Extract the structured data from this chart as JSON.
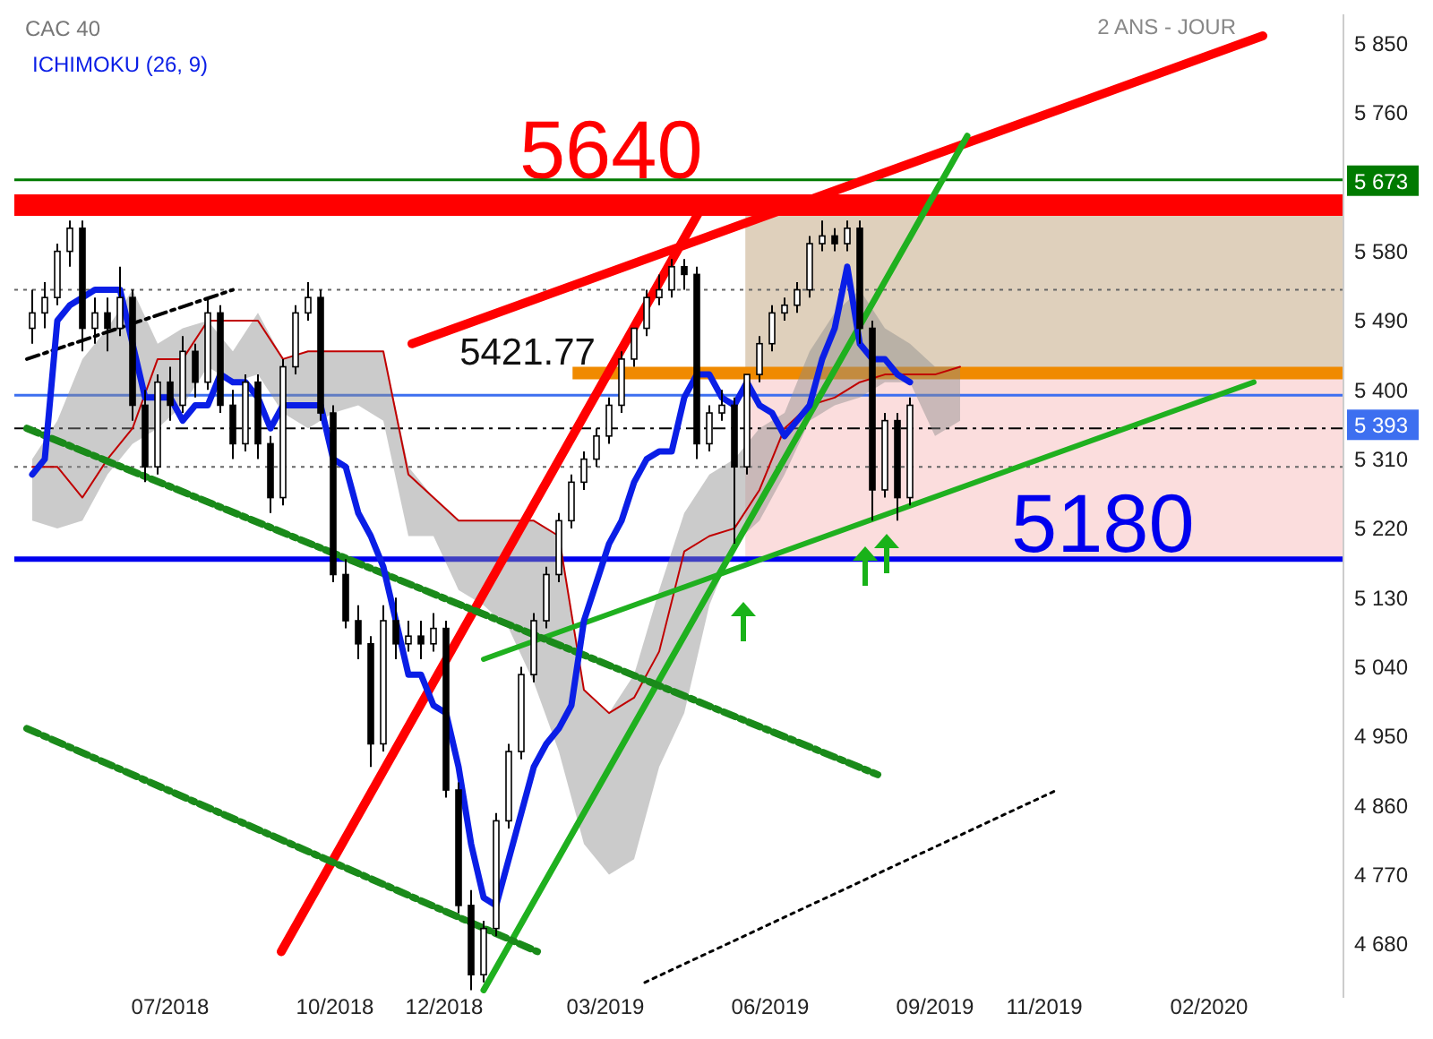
{
  "chart_data": {
    "type": "candlestick",
    "title": "CAC 40",
    "annotations": [
      "2 ANS - JOUR"
    ],
    "legend": "top left",
    "x": [
      "2018-04-15",
      "2018-04-22",
      "2018-04-29",
      "2018-05-06",
      "2018-05-13",
      "2018-05-20",
      "2018-05-27",
      "2018-06-03",
      "2018-06-10",
      "2018-06-17",
      "2018-06-24",
      "2018-07-01",
      "2018-07-08",
      "2018-07-15",
      "2018-07-22",
      "2018-07-29",
      "2018-08-05",
      "2018-08-12",
      "2018-08-19",
      "2018-08-26",
      "2018-09-02",
      "2018-09-09",
      "2018-09-16",
      "2018-09-23",
      "2018-09-30",
      "2018-10-07",
      "2018-10-14",
      "2018-10-21",
      "2018-10-28",
      "2018-11-04",
      "2018-11-11",
      "2018-11-18",
      "2018-11-25",
      "2018-12-02",
      "2018-12-09",
      "2018-12-16",
      "2018-12-23",
      "2018-12-30",
      "2019-01-06",
      "2019-01-13",
      "2019-01-20",
      "2019-01-27",
      "2019-02-03",
      "2019-02-10",
      "2019-02-17",
      "2019-02-24",
      "2019-03-03",
      "2019-03-10",
      "2019-03-17",
      "2019-03-24",
      "2019-03-31",
      "2019-04-07",
      "2019-04-14",
      "2019-04-21",
      "2019-04-28",
      "2019-05-05",
      "2019-05-12",
      "2019-05-19",
      "2019-05-26",
      "2019-06-02",
      "2019-06-09",
      "2019-06-16",
      "2019-06-23",
      "2019-06-30",
      "2019-07-07",
      "2019-07-14",
      "2019-07-21",
      "2019-07-28",
      "2019-08-04",
      "2019-08-11",
      "2019-08-18"
    ],
    "ohlc": [
      [
        5480,
        5530,
        5460,
        5500
      ],
      [
        5500,
        5540,
        5480,
        5520
      ],
      [
        5520,
        5590,
        5510,
        5580
      ],
      [
        5580,
        5620,
        5560,
        5610
      ],
      [
        5610,
        5620,
        5450,
        5480
      ],
      [
        5480,
        5520,
        5460,
        5500
      ],
      [
        5500,
        5520,
        5450,
        5480
      ],
      [
        5480,
        5560,
        5470,
        5520
      ],
      [
        5520,
        5530,
        5360,
        5380
      ],
      [
        5380,
        5400,
        5280,
        5300
      ],
      [
        5300,
        5420,
        5290,
        5410
      ],
      [
        5410,
        5430,
        5360,
        5380
      ],
      [
        5380,
        5470,
        5370,
        5450
      ],
      [
        5450,
        5460,
        5390,
        5410
      ],
      [
        5410,
        5520,
        5400,
        5500
      ],
      [
        5500,
        5510,
        5370,
        5380
      ],
      [
        5380,
        5400,
        5310,
        5330
      ],
      [
        5330,
        5420,
        5320,
        5410
      ],
      [
        5410,
        5420,
        5310,
        5330
      ],
      [
        5330,
        5340,
        5240,
        5260
      ],
      [
        5260,
        5440,
        5250,
        5430
      ],
      [
        5430,
        5510,
        5420,
        5500
      ],
      [
        5500,
        5540,
        5490,
        5520
      ],
      [
        5520,
        5530,
        5360,
        5370
      ],
      [
        5370,
        5380,
        5150,
        5160
      ],
      [
        5160,
        5180,
        5090,
        5100
      ],
      [
        5100,
        5120,
        5050,
        5070
      ],
      [
        5070,
        5080,
        4910,
        4940
      ],
      [
        4940,
        5120,
        4930,
        5100
      ],
      [
        5100,
        5130,
        5050,
        5070
      ],
      [
        5070,
        5100,
        5060,
        5080
      ],
      [
        5080,
        5100,
        5050,
        5070
      ],
      [
        5070,
        5110,
        5060,
        5090
      ],
      [
        5090,
        5100,
        4870,
        4880
      ],
      [
        4880,
        4890,
        4720,
        4730
      ],
      [
        4730,
        4750,
        4620,
        4640
      ],
      [
        4640,
        4710,
        4630,
        4700
      ],
      [
        4700,
        4850,
        4690,
        4840
      ],
      [
        4840,
        4940,
        4830,
        4930
      ],
      [
        4930,
        5040,
        4920,
        5030
      ],
      [
        5030,
        5110,
        5020,
        5100
      ],
      [
        5100,
        5170,
        5090,
        5160
      ],
      [
        5160,
        5240,
        5150,
        5230
      ],
      [
        5230,
        5290,
        5220,
        5280
      ],
      [
        5280,
        5320,
        5270,
        5310
      ],
      [
        5310,
        5350,
        5300,
        5340
      ],
      [
        5340,
        5390,
        5330,
        5380
      ],
      [
        5380,
        5450,
        5370,
        5440
      ],
      [
        5440,
        5480,
        5430,
        5480
      ],
      [
        5480,
        5530,
        5470,
        5520
      ],
      [
        5520,
        5550,
        5510,
        5530
      ],
      [
        5530,
        5570,
        5520,
        5560
      ],
      [
        5560,
        5570,
        5530,
        5550
      ],
      [
        5550,
        5560,
        5310,
        5330
      ],
      [
        5330,
        5380,
        5320,
        5370
      ],
      [
        5370,
        5400,
        5360,
        5380
      ],
      [
        5380,
        5390,
        5200,
        5300
      ],
      [
        5300,
        5420,
        5290,
        5420
      ],
      [
        5420,
        5470,
        5410,
        5460
      ],
      [
        5460,
        5510,
        5450,
        5500
      ],
      [
        5500,
        5520,
        5490,
        5510
      ],
      [
        5510,
        5540,
        5500,
        5530
      ],
      [
        5530,
        5600,
        5520,
        5590
      ],
      [
        5590,
        5620,
        5580,
        5600
      ],
      [
        5600,
        5610,
        5580,
        5590
      ],
      [
        5590,
        5620,
        5580,
        5610
      ],
      [
        5610,
        5620,
        5460,
        5480
      ],
      [
        5480,
        5490,
        5230,
        5270
      ],
      [
        5270,
        5370,
        5260,
        5360
      ],
      [
        5360,
        5370,
        5230,
        5260
      ],
      [
        5260,
        5390,
        5250,
        5380
      ]
    ],
    "series": [
      {
        "name": "ICHIMOKU (26, 9)",
        "type": "line",
        "color": "#0a1ee6",
        "x": [
          "2018-04-15",
          "2018-04-22",
          "2018-04-29",
          "2018-05-06",
          "2018-05-13",
          "2018-05-20",
          "2018-05-27",
          "2018-06-03",
          "2018-06-10",
          "2018-06-17",
          "2018-06-24",
          "2018-07-01",
          "2018-07-08",
          "2018-07-15",
          "2018-07-22",
          "2018-07-29",
          "2018-08-05",
          "2018-08-12",
          "2018-08-19",
          "2018-08-26",
          "2018-09-02",
          "2018-09-09",
          "2018-09-16",
          "2018-09-23",
          "2018-09-30",
          "2018-10-07",
          "2018-10-14",
          "2018-10-21",
          "2018-10-28",
          "2018-11-04",
          "2018-11-11",
          "2018-11-18",
          "2018-11-25",
          "2018-12-02",
          "2018-12-09",
          "2018-12-16",
          "2018-12-23",
          "2018-12-30",
          "2019-01-06",
          "2019-01-13",
          "2019-01-20",
          "2019-01-27",
          "2019-02-03",
          "2019-02-10",
          "2019-02-17",
          "2019-02-24",
          "2019-03-03",
          "2019-03-10",
          "2019-03-17",
          "2019-03-24",
          "2019-03-31",
          "2019-04-07",
          "2019-04-14",
          "2019-04-21",
          "2019-04-28",
          "2019-05-05",
          "2019-05-12",
          "2019-05-19",
          "2019-05-26",
          "2019-06-02",
          "2019-06-09",
          "2019-06-16",
          "2019-06-23",
          "2019-06-30",
          "2019-07-07",
          "2019-07-14",
          "2019-07-21",
          "2019-07-28",
          "2019-08-04",
          "2019-08-11",
          "2019-08-18"
        ],
        "values": [
          5290,
          5310,
          5490,
          5510,
          5520,
          5530,
          5530,
          5530,
          5460,
          5390,
          5390,
          5390,
          5360,
          5380,
          5380,
          5420,
          5410,
          5410,
          5390,
          5350,
          5380,
          5380,
          5380,
          5380,
          5310,
          5300,
          5240,
          5210,
          5170,
          5100,
          5030,
          5030,
          4990,
          4980,
          4910,
          4810,
          4740,
          4730,
          4790,
          4850,
          4910,
          4940,
          4960,
          4990,
          5100,
          5150,
          5200,
          5230,
          5280,
          5310,
          5320,
          5320,
          5390,
          5420,
          5420,
          5390,
          5380,
          5410,
          5380,
          5370,
          5340,
          5360,
          5380,
          5440,
          5480,
          5560,
          5460,
          5440,
          5440,
          5420,
          5410
        ]
      },
      {
        "type": "line",
        "color": "#c00000",
        "x": [
          "2018-04-15",
          "2018-04-29",
          "2018-05-13",
          "2018-05-27",
          "2018-06-10",
          "2018-06-24",
          "2018-07-08",
          "2018-07-22",
          "2018-08-05",
          "2018-08-19",
          "2018-09-02",
          "2018-09-16",
          "2018-09-30",
          "2018-10-14",
          "2018-10-28",
          "2018-11-11",
          "2018-11-25",
          "2018-12-09",
          "2018-12-23",
          "2019-01-06",
          "2019-01-20",
          "2019-02-03",
          "2019-02-17",
          "2019-03-03",
          "2019-03-17",
          "2019-03-31",
          "2019-04-14",
          "2019-04-28",
          "2019-05-12",
          "2019-05-26",
          "2019-06-09",
          "2019-06-23",
          "2019-07-07",
          "2019-07-21",
          "2019-08-04",
          "2019-08-18",
          "2019-09-01",
          "2019-09-15"
        ],
        "values": [
          5300,
          5300,
          5260,
          5310,
          5350,
          5440,
          5440,
          5490,
          5490,
          5490,
          5440,
          5450,
          5450,
          5450,
          5450,
          5290,
          5260,
          5230,
          5230,
          5230,
          5230,
          5210,
          5010,
          4980,
          5000,
          5060,
          5190,
          5210,
          5220,
          5270,
          5350,
          5380,
          5390,
          5410,
          5420,
          5420,
          5420,
          5430
        ],
        "upper": [
          5310,
          5360,
          5440,
          5480,
          5530,
          5460,
          5480,
          5490,
          5450,
          5500,
          5440,
          5450,
          5450,
          5450,
          5450,
          5300,
          5260,
          5230,
          5230,
          5230,
          5230,
          5210,
          5010,
          4980,
          5030,
          5140,
          5240,
          5290,
          5310,
          5350,
          5370,
          5450,
          5500,
          5530,
          5480,
          5460,
          5430,
          5430
        ],
        "lower": [
          5230,
          5220,
          5230,
          5290,
          5330,
          5350,
          5380,
          5430,
          5410,
          5420,
          5370,
          5350,
          5370,
          5380,
          5360,
          5210,
          5210,
          5140,
          5120,
          5090,
          5020,
          4930,
          4810,
          4770,
          4790,
          4910,
          4980,
          5120,
          5200,
          5230,
          5290,
          5360,
          5380,
          5390,
          5410,
          5410,
          5340,
          5360
        ]
      },
      {
        "type": "line",
        "color": "#ff0000",
        "x": [
          "2018-11-13",
          "2020-03-02"
        ],
        "values": [
          5460,
          5860
        ]
      },
      {
        "type": "line",
        "color": "#ff0000",
        "x": [
          "2018-09-01",
          "2019-04-22"
        ],
        "values": [
          4670,
          5630
        ]
      },
      {
        "type": "line",
        "color": "#1fb01f",
        "x": [
          "2018-12-23",
          "2019-09-19"
        ],
        "values": [
          4620,
          5730
        ]
      },
      {
        "type": "line",
        "color": "#1fb01f",
        "x": [
          "2018-12-23",
          "2020-02-26"
        ],
        "values": [
          5050,
          5410
        ]
      },
      {
        "type": "line",
        "color": "#1a8a1a",
        "line_style": "dashed",
        "x": [
          "2018-04-12",
          "2019-07-31"
        ],
        "values": [
          5350,
          4900
        ]
      },
      {
        "type": "line",
        "color": "#1a8a1a",
        "line_style": "dashed",
        "x": [
          "2018-04-12",
          "2019-01-22"
        ],
        "values": [
          4960,
          4670
        ]
      },
      {
        "type": "line",
        "color": "#000000",
        "line_style": "dashed",
        "x": [
          "2018-04-12",
          "2018-08-05"
        ],
        "values": [
          5440,
          5530
        ]
      },
      {
        "type": "line",
        "color": "#000000",
        "line_style": "dotted",
        "x": [
          "2019-03-23",
          "2019-11-08"
        ],
        "values": [
          4630,
          4880
        ]
      }
    ],
    "ref_lines": [
      {
        "axis": "y",
        "value": 5640,
        "label": "5640",
        "color": "#ff0000"
      },
      {
        "axis": "y",
        "value": 5180,
        "label": "5180",
        "color": "#0000ee"
      },
      {
        "axis": "y",
        "value": 5421.77,
        "label": "5421.77",
        "color": "#f08a00"
      },
      {
        "axis": "y",
        "value": 5673,
        "label": "5 673",
        "color": "#007a00"
      },
      {
        "axis": "y",
        "value": 5393,
        "label": "5 393",
        "color": "#3d6ff0"
      },
      {
        "axis": "y",
        "value": 5350,
        "color": "#000000",
        "line_style": "dashed"
      },
      {
        "axis": "y",
        "value": 5530,
        "color": "#666666",
        "line_style": "dotted"
      },
      {
        "axis": "y",
        "value": 5300,
        "color": "#666666",
        "line_style": "dotted"
      }
    ],
    "bands": [
      {
        "axis": "y",
        "from": 5180,
        "to": 5421.77,
        "color": "#fbd9d9"
      },
      {
        "axis": "y",
        "from": 5421.77,
        "to": 5640,
        "color": "#dccbb5"
      }
    ],
    "xlim": [
      "2018-04-05",
      "2020-04-16"
    ],
    "xticks": [
      {
        "value": "2018-07-01",
        "label": "07/2018"
      },
      {
        "value": "2018-10-01",
        "label": "10/2018"
      },
      {
        "value": "2018-12-01",
        "label": "12/2018"
      },
      {
        "value": "2019-03-01",
        "label": "03/2019"
      },
      {
        "value": "2019-06-01",
        "label": "06/2019"
      },
      {
        "value": "2019-09-01",
        "label": "09/2019"
      },
      {
        "value": "2019-11-01",
        "label": "11/2019"
      },
      {
        "value": "2020-02-01",
        "label": "02/2020"
      }
    ],
    "ylim": [
      4610,
      5888
    ],
    "yticks": [
      {
        "value": 4680,
        "label": "4 680"
      },
      {
        "value": 4770,
        "label": "4 770"
      },
      {
        "value": 4860,
        "label": "4 860"
      },
      {
        "value": 4950,
        "label": "4 950"
      },
      {
        "value": 5040,
        "label": "5 040"
      },
      {
        "value": 5130,
        "label": "5 130"
      },
      {
        "value": 5220,
        "label": "5 220"
      },
      {
        "value": 5310,
        "label": "5 310"
      },
      {
        "value": 5400,
        "label": "5 400"
      },
      {
        "value": 5490,
        "label": "5 490"
      },
      {
        "value": 5580,
        "label": "5 580"
      },
      {
        "value": 5760,
        "label": "5 760"
      },
      {
        "value": 5850,
        "label": "5 850"
      }
    ]
  }
}
